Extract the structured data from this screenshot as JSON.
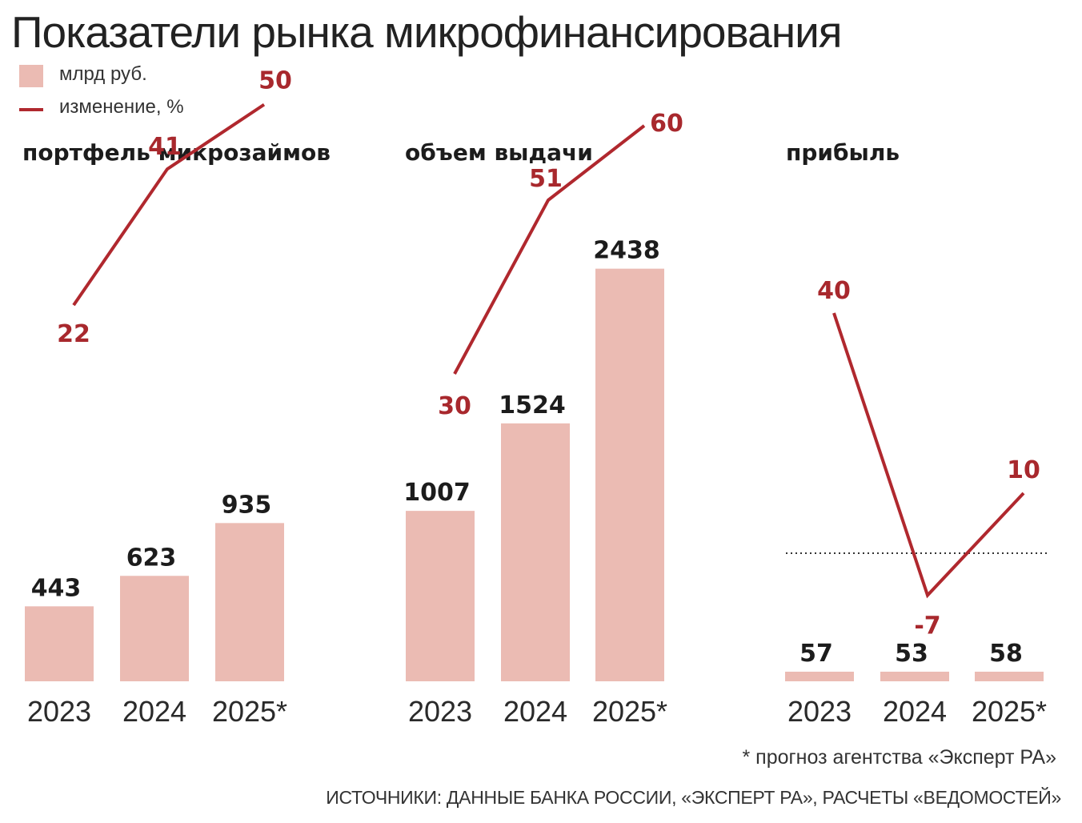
{
  "title": "Показатели рынка микрофинансирования",
  "legend": {
    "bars_label": "млрд руб.",
    "line_label": "изменение, %"
  },
  "colors": {
    "bar": "#ebbbb3",
    "line": "#b0282e",
    "line_label": "#a8282d",
    "zero_line": "#333333"
  },
  "footnote": "* прогноз агентства «Эксперт РА»",
  "sources": "ИСТОЧНИКИ: ДАННЫЕ БАНКА РОССИИ, «ЭКСПЕРТ РА», РАСЧЕТЫ «ВЕДОМОСТЕЙ»",
  "chart_data": [
    {
      "type": "bar",
      "title": "портфель микрозаймов",
      "categories": [
        "2023",
        "2024",
        "2025*"
      ],
      "series": [
        {
          "name": "млрд руб.",
          "type": "bar",
          "values": [
            443,
            623,
            935
          ]
        },
        {
          "name": "изменение, %",
          "type": "line",
          "values": [
            22,
            41,
            50
          ]
        }
      ]
    },
    {
      "type": "bar",
      "title": "объем выдачи",
      "categories": [
        "2023",
        "2024",
        "2025*"
      ],
      "series": [
        {
          "name": "млрд руб.",
          "type": "bar",
          "values": [
            1007,
            1524,
            2438
          ]
        },
        {
          "name": "изменение, %",
          "type": "line",
          "values": [
            30,
            51,
            60
          ]
        }
      ]
    },
    {
      "type": "bar",
      "title": "прибыль",
      "categories": [
        "2023",
        "2024",
        "2025*"
      ],
      "series": [
        {
          "name": "млрд руб.",
          "type": "bar",
          "values": [
            57,
            53,
            58
          ]
        },
        {
          "name": "изменение, %",
          "type": "line",
          "values": [
            40,
            -7,
            10
          ]
        }
      ],
      "zero_line": true
    }
  ]
}
